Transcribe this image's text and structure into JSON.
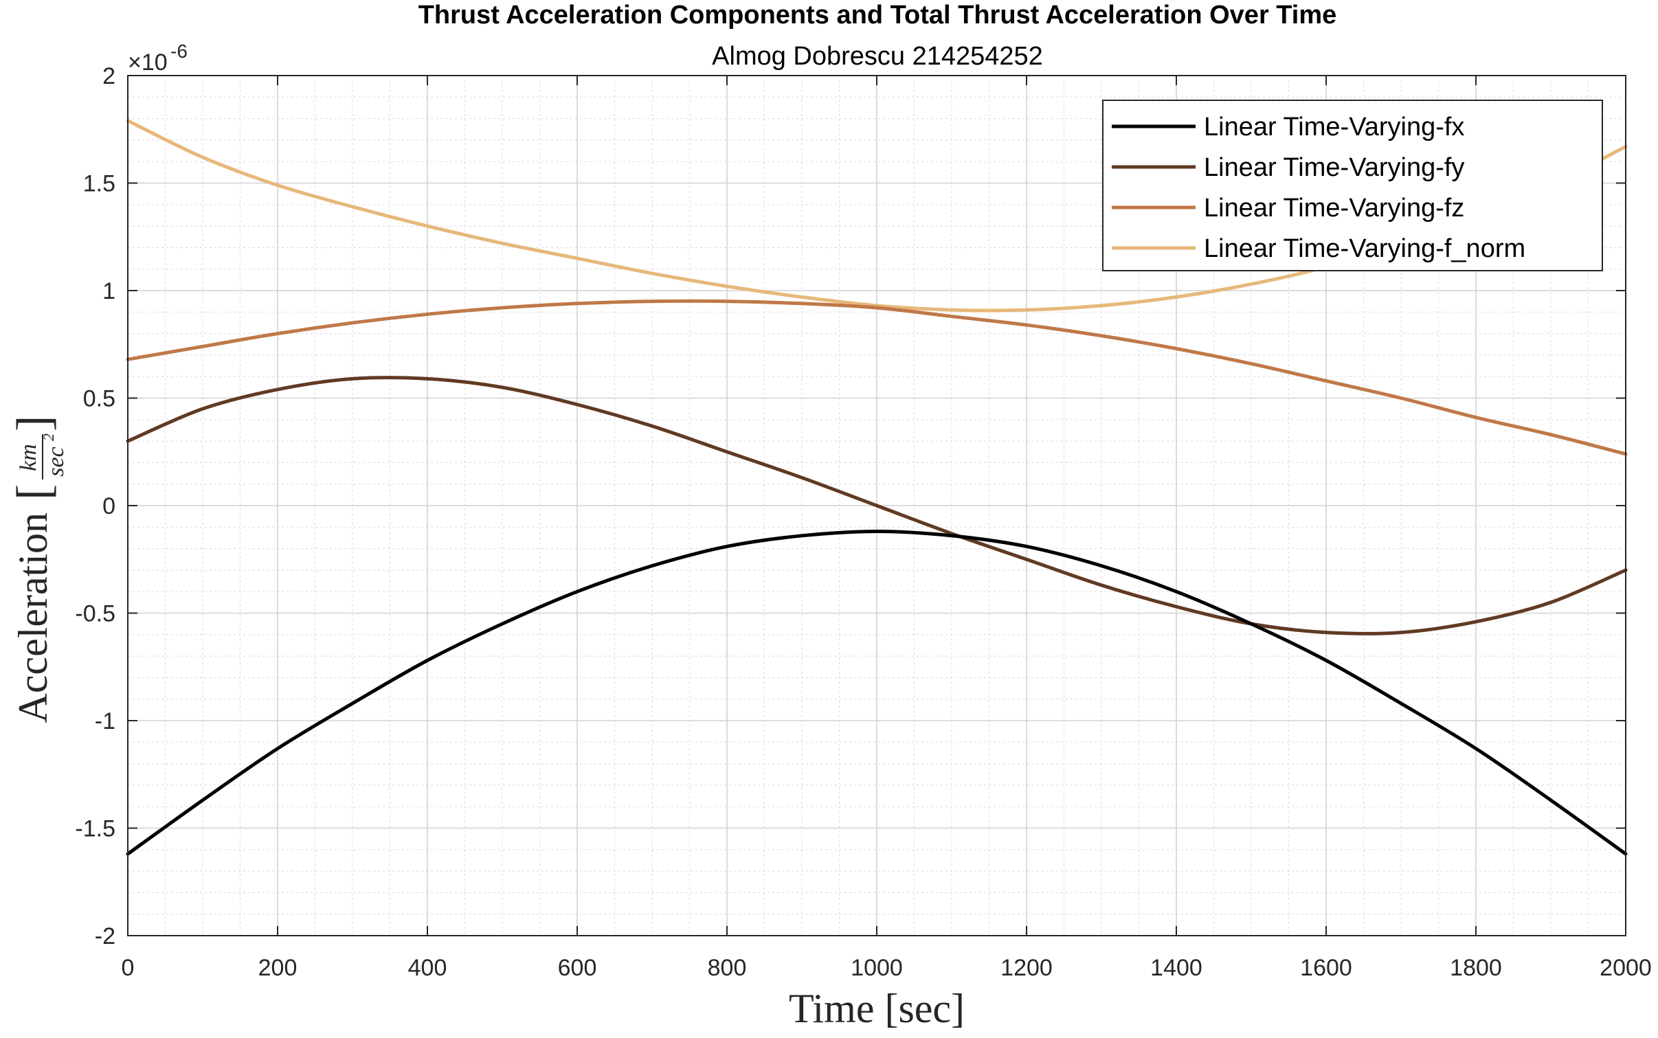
{
  "chart_data": {
    "type": "line",
    "title": "Thrust Acceleration Components and Total Thrust Acceleration Over Time",
    "subtitle": "Almog Dobrescu 214254252",
    "xlabel": "Time [sec]",
    "ylabel": "Acceleration",
    "ylabel_unit_num": "km",
    "ylabel_unit_den": "sec",
    "ylabel_unit_den_exp": "2",
    "y_exponent_label": "×10",
    "y_exponent_power": "-6",
    "xlim": [
      0,
      2000
    ],
    "ylim": [
      -2,
      2
    ],
    "x_ticks": [
      0,
      200,
      400,
      600,
      800,
      1000,
      1200,
      1400,
      1600,
      1800,
      2000
    ],
    "x_tick_labels": [
      "0",
      "200",
      "400",
      "600",
      "800",
      "1000",
      "1200",
      "1400",
      "1600",
      "1800",
      "2000"
    ],
    "y_ticks": [
      -2,
      -1.5,
      -1,
      -0.5,
      0,
      0.5,
      1,
      1.5,
      2
    ],
    "y_tick_labels": [
      "-2",
      "-1.5",
      "-1",
      "-0.5",
      "0",
      "0.5",
      "1",
      "1.5",
      "2"
    ],
    "grid": true,
    "minor_grid": true,
    "legend_position": "top-right",
    "x": [
      0,
      100,
      200,
      300,
      400,
      500,
      600,
      700,
      800,
      900,
      1000,
      1100,
      1200,
      1300,
      1400,
      1500,
      1600,
      1700,
      1800,
      1900,
      2000
    ],
    "series": [
      {
        "name": "Linear Time-Varying-fx",
        "color": "#000000",
        "values": [
          -1.62,
          -1.37,
          -1.13,
          -0.92,
          -0.72,
          -0.55,
          -0.4,
          -0.28,
          -0.19,
          -0.14,
          -0.12,
          -0.14,
          -0.19,
          -0.28,
          -0.4,
          -0.55,
          -0.72,
          -0.92,
          -1.13,
          -1.37,
          -1.62
        ]
      },
      {
        "name": "Linear Time-Varying-fy",
        "color": "#613a23",
        "values": [
          0.3,
          0.45,
          0.54,
          0.59,
          0.59,
          0.55,
          0.47,
          0.37,
          0.25,
          0.13,
          0.0,
          -0.13,
          -0.25,
          -0.37,
          -0.47,
          -0.55,
          -0.59,
          -0.59,
          -0.54,
          -0.45,
          -0.3
        ]
      },
      {
        "name": "Linear Time-Varying-fz",
        "color": "#c07848",
        "values": [
          0.68,
          0.74,
          0.8,
          0.85,
          0.89,
          0.92,
          0.94,
          0.95,
          0.95,
          0.94,
          0.92,
          0.88,
          0.84,
          0.79,
          0.73,
          0.66,
          0.58,
          0.5,
          0.41,
          0.33,
          0.24
        ]
      },
      {
        "name": "Linear Time-Varying-f_norm",
        "color": "#e6b87a",
        "values": [
          1.79,
          1.62,
          1.49,
          1.39,
          1.3,
          1.22,
          1.15,
          1.08,
          1.02,
          0.97,
          0.93,
          0.91,
          0.91,
          0.93,
          0.97,
          1.03,
          1.11,
          1.22,
          1.35,
          1.49,
          1.67
        ]
      }
    ]
  }
}
